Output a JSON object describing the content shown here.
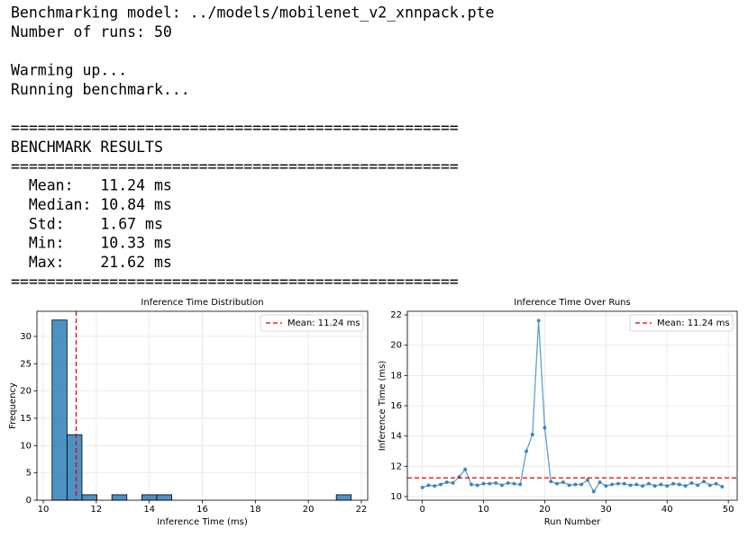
{
  "console": [
    [
      "Benchmarking model: ../models/mobilenet_v2_xnnpack.pte",
      "Number of runs: 50"
    ],
    [
      "Warming up...",
      "Running benchmark..."
    ],
    [
      "==================================================",
      "BENCHMARK RESULTS",
      "==================================================",
      "  Mean:   11.24 ms",
      "  Median: 10.84 ms",
      "  Std:    1.67 ms",
      "  Min:    10.33 ms",
      "  Max:    21.62 ms",
      "=================================================="
    ]
  ],
  "chart_data": [
    {
      "type": "histogram",
      "title": "Inference Time Distribution",
      "x_label": "Inference Time (ms)",
      "y_label": "Frequency",
      "bins": [
        10.33,
        10.8945,
        11.459,
        12.0235,
        12.588,
        13.1525,
        13.717,
        14.2815,
        14.846,
        15.4105,
        15.975,
        16.5395,
        17.104,
        17.6685,
        18.233,
        18.7975,
        19.362,
        19.9265,
        20.491,
        21.0555,
        21.62
      ],
      "counts": [
        33,
        12,
        1,
        0,
        1,
        0,
        1,
        1,
        0,
        0,
        0,
        0,
        0,
        0,
        0,
        0,
        0,
        0,
        0,
        1
      ],
      "color": "#1f77b4",
      "xlim": [
        9.76,
        22.24
      ],
      "xticks": [
        10,
        12,
        14,
        16,
        18,
        20,
        22
      ],
      "ylim": [
        0,
        34.6
      ],
      "yticks": [
        0,
        5,
        10,
        15,
        20,
        25,
        30
      ],
      "grid": true,
      "legend": "upper-right",
      "mean_line": {
        "value": 11.24,
        "label": "Mean: 11.24 ms",
        "color": "#e00000"
      }
    },
    {
      "type": "line",
      "title": "Inference Time Over Runs",
      "x_label": "Run Number",
      "y_label": "Inference Time (ms)",
      "x": [
        0,
        1,
        2,
        3,
        4,
        5,
        6,
        7,
        8,
        9,
        10,
        11,
        12,
        13,
        14,
        15,
        16,
        17,
        18,
        19,
        20,
        21,
        22,
        23,
        24,
        25,
        26,
        27,
        28,
        29,
        30,
        31,
        32,
        33,
        34,
        35,
        36,
        37,
        38,
        39,
        40,
        41,
        42,
        43,
        44,
        45,
        46,
        47,
        48,
        49
      ],
      "values": [
        10.6,
        10.75,
        10.7,
        10.8,
        10.95,
        10.9,
        11.3,
        11.8,
        10.8,
        10.75,
        10.85,
        10.85,
        10.9,
        10.75,
        10.9,
        10.85,
        10.8,
        13.0,
        14.1,
        21.62,
        14.55,
        11.0,
        10.85,
        10.95,
        10.75,
        10.8,
        10.8,
        11.1,
        10.33,
        10.95,
        10.7,
        10.8,
        10.85,
        10.85,
        10.75,
        10.8,
        10.7,
        10.85,
        10.7,
        10.8,
        10.7,
        10.85,
        10.8,
        10.7,
        10.9,
        10.75,
        11.0,
        10.75,
        10.85,
        10.65
      ],
      "color": "#1f77b4",
      "xlim": [
        -2.45,
        51.45
      ],
      "xticks": [
        0,
        10,
        20,
        30,
        40,
        50
      ],
      "ylim": [
        9.76,
        22.24
      ],
      "yticks": [
        10,
        12,
        14,
        16,
        18,
        20,
        22
      ],
      "grid": true,
      "legend": "upper-right",
      "mean_line": {
        "value": 11.24,
        "label": "Mean: 11.24 ms",
        "color": "#e00000"
      }
    }
  ]
}
